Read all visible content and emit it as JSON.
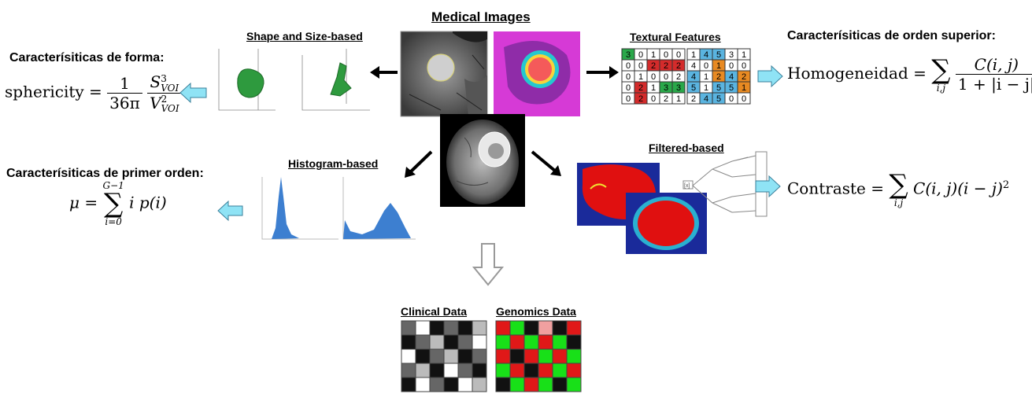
{
  "title": "Medical Images",
  "sections": {
    "shape": "Shape and Size-based",
    "textural": "Textural Features",
    "histogram": "Histogram-based",
    "filtered": "Filtered-based",
    "clinical": "Clinical Data",
    "genomics": "Genomics Data"
  },
  "left_top": {
    "heading": "Caracterísiticas de forma:",
    "lhs": "sphericity",
    "eq": "=",
    "frac1_num": "1",
    "frac1_den": "36π",
    "frac2_num_base": "S",
    "frac2_num_sup": "3",
    "frac2_num_sub": "VOI",
    "frac2_den_base": "V",
    "frac2_den_sup": "2",
    "frac2_den_sub": "VOI"
  },
  "left_bottom": {
    "heading": "Caracterísiticas de primer orden:",
    "lhs": "μ",
    "eq": "=",
    "sum_top": "G−1",
    "sum_bottom": "i=0",
    "body": "i p(i)"
  },
  "right_top": {
    "heading": "Caracterísiticas de orden superior:",
    "lhs": "Homogeneidad",
    "eq": "=",
    "sum_bottom": "i,j",
    "num": "C(i, j)",
    "den": "1 + |i − j|"
  },
  "right_bottom": {
    "lhs": "Contraste",
    "eq": "=",
    "sum_bottom": "i,j",
    "body": "C(i, j)(i − j)",
    "sup": "2"
  },
  "glcm_left": [
    [
      "3",
      "0",
      "1",
      "0",
      "0"
    ],
    [
      "0",
      "0",
      "2",
      "2",
      "2"
    ],
    [
      "0",
      "1",
      "0",
      "0",
      "2"
    ],
    [
      "0",
      "2",
      "1",
      "3",
      "3"
    ],
    [
      "0",
      "2",
      "0",
      "2",
      "1"
    ]
  ],
  "glcm_right": [
    [
      "1",
      "4",
      "5",
      "3",
      "1"
    ],
    [
      "4",
      "0",
      "1",
      "0",
      "0"
    ],
    [
      "4",
      "1",
      "2",
      "4",
      "2"
    ],
    [
      "5",
      "1",
      "5",
      "5",
      "1"
    ],
    [
      "2",
      "4",
      "5",
      "0",
      "0"
    ]
  ],
  "filter_label": "[x]",
  "colors": {
    "arrow_fill": "#8fe3f5",
    "arrow_stroke": "#3a7f9a",
    "hist_blue": "#3d7fd0",
    "tumor_green": "#2e9a3e",
    "cell_green": "#2aa84a",
    "cell_red": "#d42b2b",
    "cell_blue": "#5ab4e0",
    "cell_orange": "#e88a22",
    "heat_red": "#e01010",
    "heat_blue": "#1a2a9a"
  }
}
